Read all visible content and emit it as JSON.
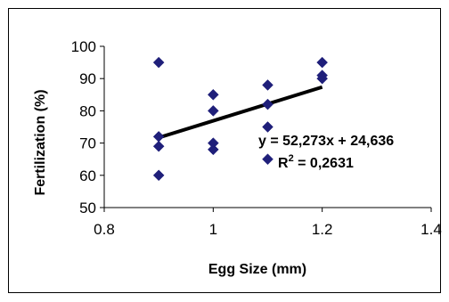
{
  "chart_data": {
    "type": "scatter",
    "title": "",
    "xlabel": "Egg Size (mm)",
    "ylabel": "Fertilization (%)",
    "xlim": [
      0.8,
      1.4
    ],
    "ylim": [
      50,
      100
    ],
    "x_ticks": [
      0.8,
      1,
      1.2,
      1.4
    ],
    "x_tick_labels": [
      "0.8",
      "1",
      "1.2",
      "1.4"
    ],
    "y_ticks": [
      50,
      60,
      70,
      80,
      90,
      100
    ],
    "y_tick_labels": [
      "50",
      "60",
      "70",
      "80",
      "90",
      "100"
    ],
    "grid": false,
    "legend": "none",
    "marker_color": "#1F1F7A",
    "trendline_color": "#000000",
    "series": [
      {
        "x": [
          0.9,
          0.9,
          0.9,
          0.9,
          1.0,
          1.0,
          1.0,
          1.0,
          1.1,
          1.1,
          1.1,
          1.1,
          1.2,
          1.2,
          1.2
        ],
        "y": [
          95,
          72,
          69,
          60,
          85,
          80,
          70,
          68,
          88,
          82,
          75,
          65,
          95,
          91,
          90
        ]
      }
    ],
    "trendline": {
      "slope": 52.273,
      "intercept": 24.636,
      "x_range": [
        0.9,
        1.2
      ]
    },
    "annotations": {
      "equation": "y = 52,273x + 24,636",
      "r_squared_prefix": "R",
      "r_squared_superscript": "2",
      "r_squared_value": " = 0,2631"
    }
  }
}
